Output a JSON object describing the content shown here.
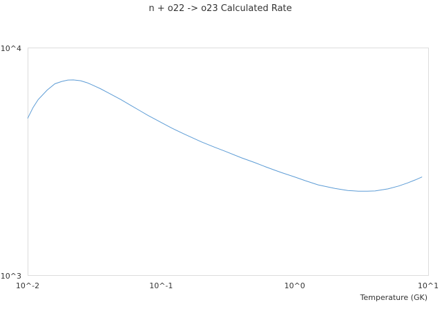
{
  "chart_data": {
    "type": "line",
    "title": "n + o22 -> o23 Calculated Rate",
    "xlabel": "Temperature (GK)",
    "ylabel": "",
    "x_scale": "log",
    "y_scale": "log",
    "xlim": [
      0.01,
      10
    ],
    "ylim": [
      1000,
      10000
    ],
    "x_ticks": [
      "10^-2",
      "10^-1",
      "10^0",
      "10^1"
    ],
    "y_ticks": [
      "10^3",
      "10^4"
    ],
    "grid": false,
    "legend": "none",
    "colors": {
      "series": "#5b9bd5",
      "frame": "#dcdcdc",
      "text": "#333333"
    },
    "series": [
      {
        "x": [
          0.01,
          0.011,
          0.012,
          0.014,
          0.016,
          0.018,
          0.02,
          0.022,
          0.025,
          0.028,
          0.03,
          0.035,
          0.04,
          0.05,
          0.06,
          0.07,
          0.08,
          0.09,
          0.1,
          0.12,
          0.15,
          0.2,
          0.25,
          0.3,
          0.4,
          0.5,
          0.6,
          0.7,
          0.8,
          1.0,
          1.2,
          1.5,
          2.0,
          2.5,
          3.0,
          3.5,
          4.0,
          5.0,
          6.0,
          7.0,
          8.0,
          9.0
        ],
        "values": [
          4920,
          5500,
          5950,
          6550,
          6980,
          7150,
          7250,
          7260,
          7200,
          7050,
          6930,
          6650,
          6380,
          5950,
          5590,
          5300,
          5060,
          4880,
          4720,
          4460,
          4190,
          3880,
          3680,
          3530,
          3300,
          3150,
          3020,
          2920,
          2840,
          2720,
          2620,
          2510,
          2420,
          2370,
          2355,
          2355,
          2360,
          2410,
          2480,
          2560,
          2640,
          2720
        ]
      }
    ]
  }
}
